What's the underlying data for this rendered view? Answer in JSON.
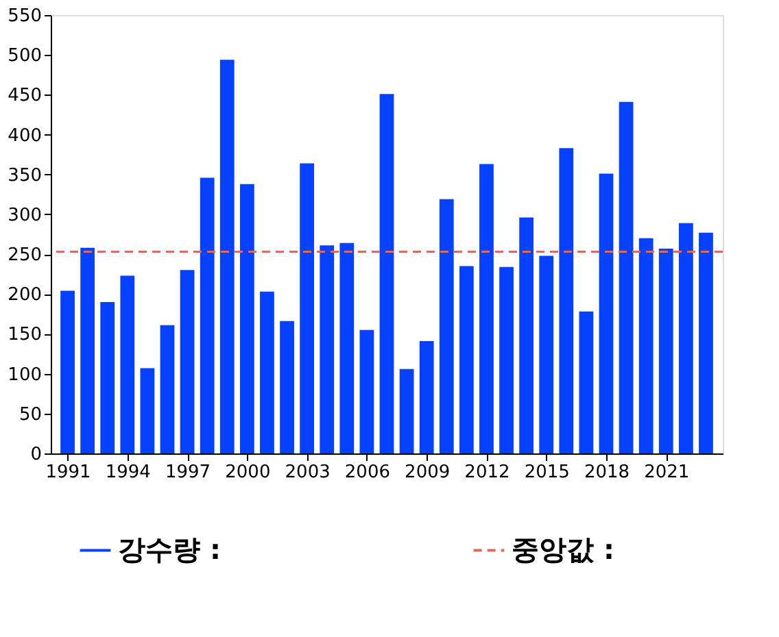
{
  "chart_data": {
    "type": "bar",
    "x": [
      1991,
      1992,
      1993,
      1994,
      1995,
      1996,
      1997,
      1998,
      1999,
      2000,
      2001,
      2002,
      2003,
      2004,
      2005,
      2006,
      2007,
      2008,
      2009,
      2010,
      2011,
      2012,
      2013,
      2014,
      2015,
      2016,
      2017,
      2018,
      2019,
      2020,
      2021,
      2022,
      2023
    ],
    "series": [
      {
        "name": "강수량 :",
        "color": "#0541ff",
        "values": [
          204,
          258,
          190,
          223,
          107,
          161,
          230,
          346,
          494,
          338,
          203,
          166,
          364,
          261,
          264,
          155,
          451,
          106,
          141,
          319,
          235,
          363,
          234,
          296,
          248,
          383,
          178,
          351,
          441,
          270,
          257,
          289,
          277
        ]
      }
    ],
    "xlim": [
      1990.5,
      2023.5
    ],
    "xticks": [
      1991,
      1994,
      1997,
      2000,
      2003,
      2006,
      2009,
      2012,
      2015,
      2018,
      2021
    ],
    "ylim": [
      0,
      550
    ],
    "yticks": [
      0,
      50,
      100,
      150,
      200,
      250,
      300,
      350,
      400,
      450,
      500,
      550
    ],
    "ref_lines": [
      {
        "axis": "y",
        "value": 253,
        "label": "중앙값 :",
        "color": "#e06a5a",
        "line_style": "dashed"
      }
    ],
    "grid": false,
    "legend": "bottom"
  }
}
